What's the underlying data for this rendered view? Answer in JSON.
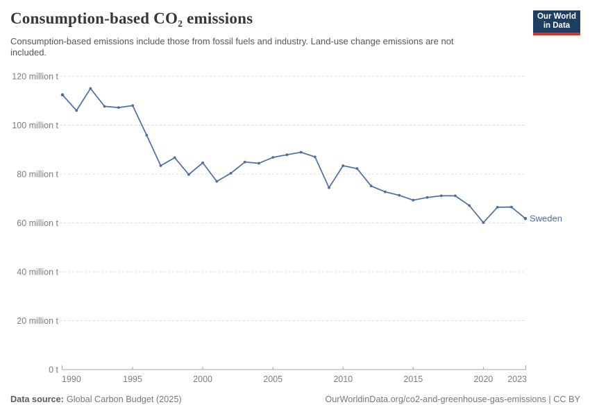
{
  "header": {
    "title": "Consumption-based CO₂ emissions",
    "subtitle_lines": [
      "Consumption-based emissions include those from fossil fuels and industry. Land-use change emissions are not",
      "included."
    ]
  },
  "logo": {
    "line1": "Our World",
    "line2": "in Data",
    "bg_color": "#1d3d63",
    "accent_color": "#d4352b"
  },
  "chart_data": {
    "type": "line",
    "title": "Consumption-based CO₂ emissions",
    "unit": "million t",
    "xlim": [
      1990,
      2023
    ],
    "ylim": [
      0,
      120
    ],
    "grid": true,
    "x": [
      1990,
      1991,
      1992,
      1993,
      1994,
      1995,
      1996,
      1997,
      1998,
      1999,
      2000,
      2001,
      2002,
      2003,
      2004,
      2005,
      2006,
      2007,
      2008,
      2009,
      2010,
      2011,
      2012,
      2013,
      2014,
      2015,
      2016,
      2017,
      2018,
      2019,
      2020,
      2021,
      2022,
      2023
    ],
    "series": [
      {
        "name": "Sweden",
        "color": "#4d6ca5",
        "values": [
          112.4,
          106.0,
          115.0,
          107.7,
          107.2,
          108.0,
          95.9,
          83.4,
          86.7,
          79.8,
          84.6,
          77.0,
          80.3,
          84.9,
          84.4,
          86.8,
          87.9,
          88.9,
          87.0,
          74.4,
          83.4,
          82.2,
          75.1,
          72.7,
          71.3,
          69.3,
          70.4,
          71.1,
          71.1,
          67.1,
          60.1,
          66.4,
          66.5,
          61.8
        ]
      }
    ],
    "end_label": "Sweden",
    "y_ticks": [
      {
        "value": 0,
        "label": "0 t"
      },
      {
        "value": 20,
        "label": "20 million t"
      },
      {
        "value": 40,
        "label": "40 million t"
      },
      {
        "value": 60,
        "label": "60 million t"
      },
      {
        "value": 80,
        "label": "80 million t"
      },
      {
        "value": 100,
        "label": "100 million t"
      },
      {
        "value": 120,
        "label": "120 million t"
      }
    ],
    "x_ticks": [
      1990,
      1995,
      2000,
      2005,
      2010,
      2015,
      2020,
      2023
    ],
    "grid_color": "#dcdcdc",
    "axis_color": "#a5a5a5",
    "tick_label_color": "#7d7d7d"
  },
  "footer": {
    "source_label": "Data source:",
    "source_value": "Global Carbon Budget (2025)",
    "attribution": "OurWorldinData.org/co2-and-greenhouse-gas-emissions | CC BY"
  }
}
